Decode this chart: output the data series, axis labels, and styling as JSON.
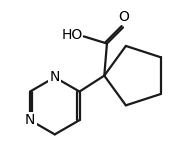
{
  "bg_color": "#ffffff",
  "line_color": "#1a1a1a",
  "line_width": 1.6,
  "text_color": "#000000",
  "font_size": 9.5,
  "figsize": [
    1.8,
    1.62
  ],
  "dpi": 100,
  "xlim": [
    0,
    10
  ],
  "ylim": [
    0,
    9
  ]
}
